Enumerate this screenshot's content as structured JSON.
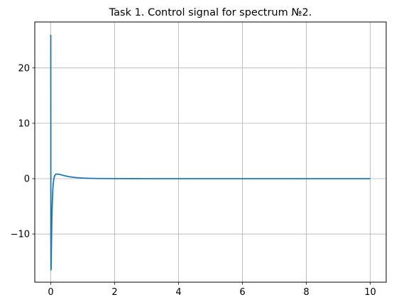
{
  "chart_data": {
    "type": "line",
    "title": "Task 1. Control signal for spectrum №2.",
    "xlabel": "",
    "ylabel": "",
    "xlim": [
      -0.5,
      10.5
    ],
    "ylim": [
      -18.7,
      28.3
    ],
    "xticks": [
      0,
      2,
      4,
      6,
      8,
      10
    ],
    "yticks": [
      -10,
      0,
      10,
      20
    ],
    "xtick_labels": [
      "0",
      "2",
      "4",
      "6",
      "8",
      "10"
    ],
    "ytick_labels": [
      "−10",
      "0",
      "10",
      "20"
    ],
    "grid": true,
    "series": [
      {
        "color": "#1f77b4",
        "x": [
          0,
          0.001,
          0.003,
          0.006,
          0.01,
          0.015,
          0.02,
          0.025,
          0.03,
          0.04,
          0.05,
          0.06,
          0.07,
          0.08,
          0.1,
          0.12,
          0.15,
          0.18,
          0.22,
          0.26,
          0.3,
          0.35,
          0.4,
          0.5,
          0.6,
          0.7,
          0.8,
          1.0,
          1.2,
          1.5,
          2.0,
          2.5,
          3.0,
          4.0,
          5.0,
          6.0,
          7.0,
          8.0,
          9.0,
          10.0
        ],
        "y": [
          26.0,
          10.0,
          -12.0,
          -16.5,
          -16.4,
          -14.5,
          -12.5,
          -10.6,
          -8.8,
          -6.0,
          -4.0,
          -2.6,
          -1.5,
          -0.8,
          0.1,
          0.5,
          0.75,
          0.82,
          0.83,
          0.8,
          0.74,
          0.65,
          0.57,
          0.44,
          0.33,
          0.25,
          0.19,
          0.11,
          0.06,
          0.03,
          0.01,
          0.003,
          0.001,
          0.0,
          0.0,
          0.0,
          0.0,
          0.0,
          0.0,
          0.0
        ]
      }
    ]
  }
}
